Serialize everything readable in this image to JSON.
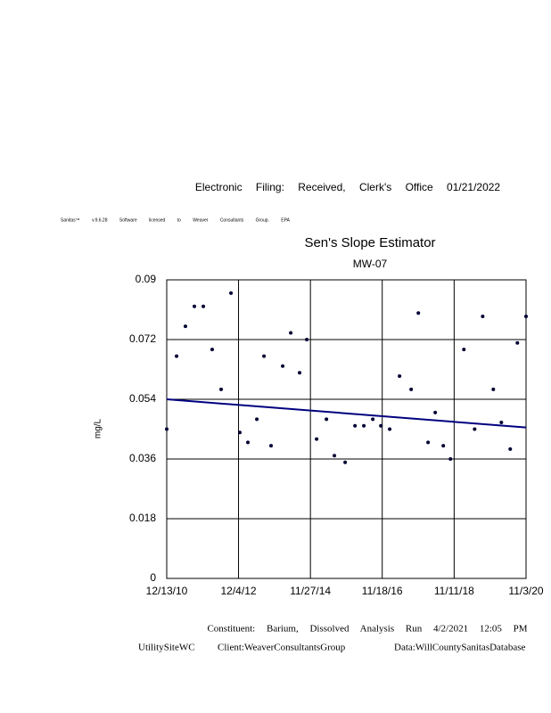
{
  "header": "Electronic Filing: Received, Clerk's Office 01/21/2022",
  "software_line": "Sanitas™ v.9.6.28 Software licensed to Weaver Consultants Group. EPA",
  "chart_data": {
    "type": "scatter",
    "title": "Sen's Slope Estimator",
    "subtitle": "MW-07",
    "ylabel": "mg/L",
    "grid": true,
    "point_color": "#000033",
    "x": [
      "2010-12-13",
      "2011-03-22",
      "2011-06-19",
      "2011-09-17",
      "2011-12-16",
      "2012-03-14",
      "2012-06-12",
      "2012-09-19",
      "2012-12-17",
      "2013-03-08",
      "2013-06-06",
      "2013-08-17",
      "2013-10-27",
      "2014-02-21",
      "2014-05-13",
      "2014-08-10",
      "2014-10-21",
      "2015-01-28",
      "2015-05-07",
      "2015-07-26",
      "2015-11-11",
      "2016-02-18",
      "2016-05-17",
      "2016-08-15",
      "2016-11-04",
      "2017-02-01",
      "2017-05-11",
      "2017-09-05",
      "2017-11-16",
      "2018-02-22",
      "2018-05-05",
      "2018-07-25",
      "2018-10-05",
      "2019-02-17",
      "2019-06-05",
      "2019-08-25",
      "2019-12-10",
      "2020-02-29",
      "2020-05-28",
      "2020-08-08",
      "2020-11-03"
    ],
    "values": [
      0.045,
      0.067,
      0.076,
      0.082,
      0.082,
      0.069,
      0.057,
      0.086,
      0.044,
      0.041,
      0.048,
      0.067,
      0.04,
      0.064,
      0.074,
      0.062,
      0.072,
      0.042,
      0.048,
      0.037,
      0.035,
      0.046,
      0.046,
      0.048,
      0.046,
      0.045,
      0.061,
      0.057,
      0.08,
      0.041,
      0.05,
      0.04,
      0.036,
      0.069,
      0.045,
      0.079,
      0.057,
      0.047,
      0.039,
      0.071,
      0.079
    ],
    "trend": {
      "color": "#000080",
      "x": [
        "2010-12-13",
        "2020-11-03"
      ],
      "values": [
        0.054,
        0.0455
      ]
    },
    "xlim": [
      "2010-12-13",
      "2020-11-03"
    ],
    "xticks": [
      {
        "value": "2010-12-13",
        "label": "12/13/10"
      },
      {
        "value": "2012-12-04",
        "label": "12/4/12"
      },
      {
        "value": "2014-11-27",
        "label": "11/27/14"
      },
      {
        "value": "2016-11-18",
        "label": "11/18/16"
      },
      {
        "value": "2018-11-11",
        "label": "11/11/18"
      },
      {
        "value": "2020-11-03",
        "label": "11/3/20"
      }
    ],
    "ylim": [
      0,
      0.09
    ],
    "yticks": [
      0,
      0.018,
      0.036,
      0.054,
      0.072,
      0.09
    ]
  },
  "footer": {
    "constituent": "Constituent: Barium, Dissolved Analysis Run 4/2/2021 12:05 PM",
    "site": "UtilitySiteWC",
    "client": "Client:WeaverConsultantsGroup",
    "database": "Data:WillCountySanitasDatabase"
  }
}
